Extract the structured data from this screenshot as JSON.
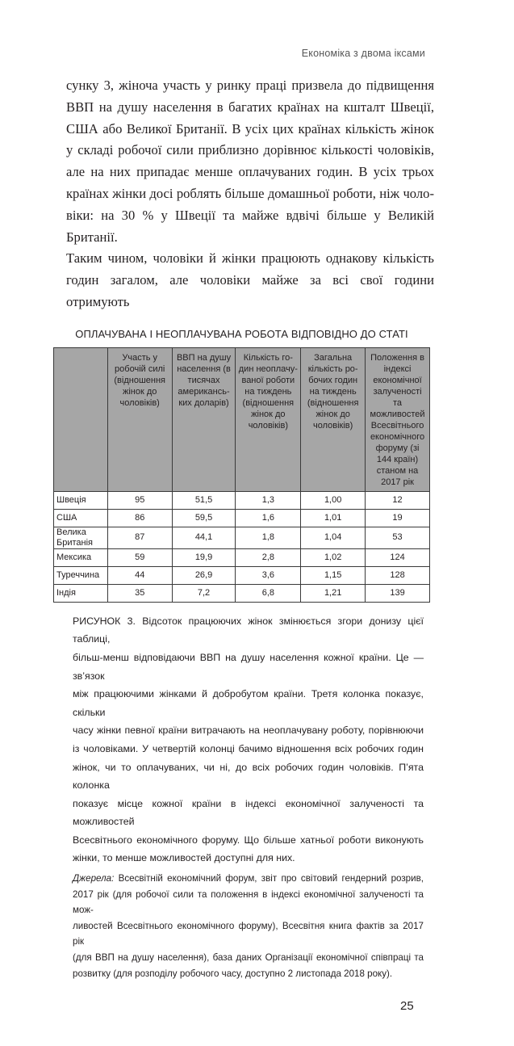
{
  "running_header": "Економіка з двома іксами",
  "body_lines": [
    "сунку 3, жіноча участь у ринку праці призвела до підвищення",
    "ВВП на душу населення в багатих країнах на кшталт Швеції,",
    "США або Великої Британії. В усіх цих країнах кількість жінок",
    "у складі робочої сили приблизно дорівнює кількості чоловіків,",
    "але на них припадає менше оплачуваних годин. В усіх трьох",
    "країнах жінки досі роблять більше домашньої роботи, ніж чоло-",
    "віки: на 30 % у Швеції та майже вдвічі більше у Великій Британії.",
    "Таким чином, чоловіки й жінки працюють однакову кількість",
    "годин загалом, але чоловіки майже за всі свої години отримують"
  ],
  "table": {
    "title": "ОПЛАЧУВАНА І НЕОПЛАЧУВАНА РОБОТА ВІДПОВІДНО ДО СТАТІ",
    "headers": [
      "",
      "Участь у робочій силі (відношення жінок до чоловіків)",
      "ВВП на душу населення (в тисячах американсь-ких доларів)",
      "Кількість го-дин неоплачу-ваної роботи на тиждень (відношення жінок до чоловіків)",
      "Загальна кількість ро-бочих годин на тиждень (відношення жінок до чоловіків)",
      "Положення в індексі економічної залученості та можливостей Всесвітнього економічного форуму (зі 144 країн) станом на 2017 рік"
    ],
    "rows": [
      [
        "Швеція",
        "95",
        "51,5",
        "1,3",
        "1,00",
        "12"
      ],
      [
        "США",
        "86",
        "59,5",
        "1,6",
        "1,01",
        "19"
      ],
      [
        "Велика Британія",
        "87",
        "44,1",
        "1,8",
        "1,04",
        "53"
      ],
      [
        "Мексика",
        "59",
        "19,9",
        "2,8",
        "1,02",
        "124"
      ],
      [
        "Туреччина",
        "44",
        "26,9",
        "3,6",
        "1,15",
        "128"
      ],
      [
        "Індія",
        "35",
        "7,2",
        "6,8",
        "1,21",
        "139"
      ]
    ]
  },
  "caption_lines": [
    "РИСУНОК 3. Відсоток працюючих жінок змінюється згори донизу цієї таблиці,",
    "більш-менш відповідаючи ВВП на душу населення кожної країни. Це — зв’язок",
    "між працюючими жінками й добробутом країни. Третя колонка показує, скільки",
    "часу жінки певної країни витрачають на неоплачувану роботу, порівнюючи",
    "із чоловіками. У четвертій колонці бачимо відношення всіх робочих годин",
    "жінок, чи то оплачуваних, чи ні, до всіх робочих годин чоловіків. П’ята колонка",
    "показує місце кожної країни в індексі економічної залученості та можливостей",
    "Всесвітнього економічного форуму. Що більше хатньої роботи виконують",
    "жінки, то менше можливостей доступні для них."
  ],
  "source": {
    "label": "Джерела:",
    "lines": [
      " Всесвітній економічний форум, звіт про світовий гендерний розрив,",
      "2017 рік (для робочої сили та положення в індексі економічної залученості та мож-",
      "ливостей Всесвітнього економічного форуму), Всесвітня книга фактів за 2017 рік",
      "(для ВВП на душу населення), база даних Організації економічної співпраці та",
      "розвитку (для розподілу робочого часу, доступно 2 листопада 2018 року)."
    ]
  },
  "page_number": "25",
  "colors": {
    "header_fill": "#a6a6a6",
    "text": "#231f20"
  }
}
